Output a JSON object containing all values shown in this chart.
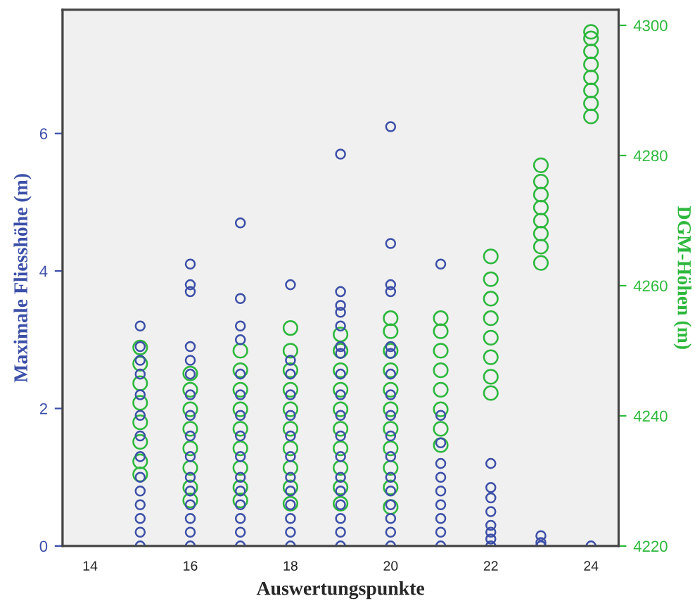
{
  "chart_data": {
    "type": "scatter",
    "xlabel": "Auswertungspunkte",
    "ylabel": "Maximale Fliesshöhe (m)",
    "y2label": "DGM-Höhen (m)",
    "xlim": [
      13.45,
      24.55
    ],
    "xticks": [
      14,
      16,
      18,
      20,
      22,
      24
    ],
    "ylim": [
      0,
      7.8
    ],
    "yticks": [
      0,
      2,
      4,
      6
    ],
    "y2lim": [
      4220,
      4302.4
    ],
    "y2ticks": [
      4220,
      4240,
      4260,
      4280,
      4300
    ],
    "marker": "circle",
    "grid": false,
    "legend": false,
    "series": [
      {
        "color": "#3c4fa8",
        "axis": "y",
        "x": [
          15,
          15,
          15,
          15,
          15,
          15,
          15,
          15,
          15,
          15,
          15,
          15,
          15,
          15,
          16,
          16,
          16,
          16,
          16,
          16,
          16,
          16,
          16,
          16,
          16,
          16,
          16,
          16,
          16,
          16,
          17,
          17,
          17,
          17,
          17,
          17,
          17,
          17,
          17,
          17,
          17,
          17,
          17,
          17,
          17,
          18,
          18,
          18,
          18,
          18,
          18,
          18,
          18,
          18,
          18,
          18,
          18,
          18,
          19,
          19,
          19,
          19,
          19,
          19,
          19,
          19,
          19,
          19,
          19,
          19,
          19,
          19,
          19,
          19,
          19,
          19,
          20,
          20,
          20,
          20,
          20,
          20,
          20,
          20,
          20,
          20,
          20,
          20,
          20,
          20,
          20,
          20,
          20,
          21,
          21,
          21,
          21,
          21,
          21,
          21,
          21,
          21,
          21,
          22,
          22,
          22,
          22,
          22,
          22,
          22,
          22,
          23,
          23,
          23,
          24
        ],
        "values": [
          0,
          0.2,
          0.4,
          0.6,
          0.8,
          1.0,
          1.3,
          1.6,
          1.9,
          2.2,
          2.5,
          2.7,
          2.9,
          3.2,
          0,
          0.2,
          0.4,
          0.6,
          0.8,
          1.0,
          1.3,
          1.6,
          1.9,
          2.2,
          2.5,
          2.7,
          2.9,
          3.7,
          3.8,
          4.1,
          0,
          0.2,
          0.4,
          0.6,
          0.8,
          1.0,
          1.3,
          1.6,
          1.9,
          2.2,
          2.5,
          3.0,
          3.2,
          3.6,
          4.7,
          0,
          0.2,
          0.4,
          0.6,
          0.8,
          1.0,
          1.3,
          1.6,
          1.9,
          2.2,
          2.5,
          2.7,
          3.8,
          0,
          0.2,
          0.4,
          0.6,
          0.8,
          1.0,
          1.3,
          1.6,
          1.9,
          2.2,
          2.5,
          2.8,
          2.9,
          3.2,
          3.4,
          3.5,
          3.7,
          5.7,
          0,
          0.2,
          0.4,
          0.6,
          0.8,
          1.0,
          1.3,
          1.6,
          1.9,
          2.2,
          2.5,
          2.8,
          2.9,
          3.7,
          3.8,
          4.4,
          6.1,
          0,
          0.2,
          0.4,
          0.6,
          0.8,
          1.0,
          1.2,
          1.5,
          1.9,
          4.1,
          0,
          0.1,
          0.2,
          0.3,
          0.5,
          0.7,
          0.85,
          1.2,
          0,
          0.05,
          0.15,
          0
        ]
      },
      {
        "color": "#2db83d",
        "axis": "y2",
        "x": [
          15,
          15,
          15,
          15,
          15,
          15,
          15,
          15,
          16,
          16,
          16,
          16,
          16,
          16,
          16,
          16,
          17,
          17,
          17,
          17,
          17,
          17,
          17,
          17,
          17,
          18,
          18,
          18,
          18,
          18,
          18,
          18,
          18,
          18,
          18,
          19,
          19,
          19,
          19,
          19,
          19,
          19,
          19,
          19,
          19,
          20,
          20,
          20,
          20,
          20,
          20,
          20,
          20,
          20,
          20,
          20,
          21,
          21,
          21,
          21,
          21,
          21,
          21,
          21,
          22,
          22,
          22,
          22,
          22,
          22,
          22,
          22,
          23,
          23,
          23,
          23,
          23,
          23,
          23,
          23,
          24,
          24,
          24,
          24,
          24,
          24,
          24,
          24
        ],
        "values": [
          4231,
          4233,
          4236,
          4239,
          4242,
          4245,
          4248,
          4250.5,
          4227,
          4229,
          4232,
          4235,
          4238,
          4241,
          4244,
          4246.5,
          4227,
          4229,
          4232,
          4235,
          4238,
          4241,
          4244,
          4247,
          4250,
          4226.5,
          4229,
          4232,
          4235,
          4238,
          4241,
          4244,
          4247,
          4250,
          4253.5,
          4226.5,
          4229,
          4232,
          4235,
          4238,
          4241,
          4244,
          4247,
          4250,
          4252.5,
          4226,
          4229,
          4232,
          4235,
          4238,
          4241,
          4244,
          4247,
          4250,
          4253,
          4255,
          4235.5,
          4238,
          4241,
          4244,
          4247,
          4250,
          4253,
          4255,
          4243.5,
          4246,
          4249,
          4252,
          4255,
          4258,
          4261,
          4264.5,
          4263.5,
          4266,
          4268,
          4270,
          4272,
          4274,
          4276,
          4278.5,
          4286,
          4288,
          4290,
          4292,
          4294,
          4296,
          4298,
          4299
        ]
      }
    ]
  }
}
